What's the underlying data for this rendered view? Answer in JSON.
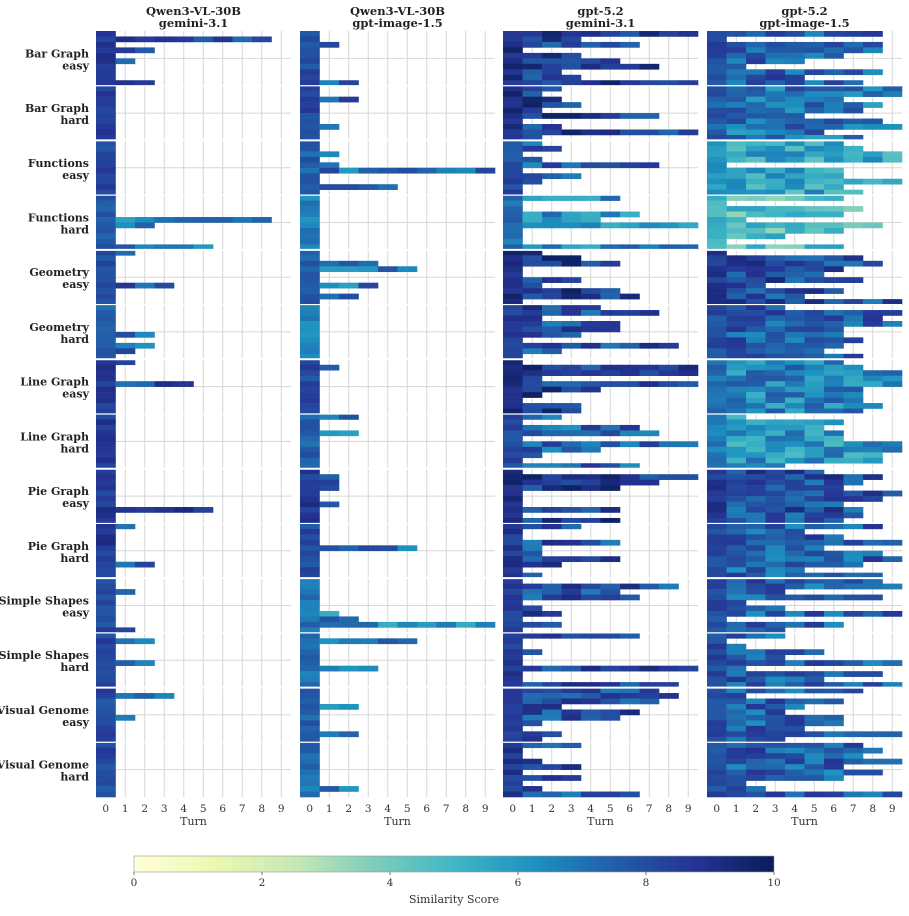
{
  "chart_data": {
    "type": "heatmap",
    "panels": [
      {
        "title_line1": "Qwen3-VL-30B",
        "title_line2": "gemini-3.1"
      },
      {
        "title_line1": "Qwen3-VL-30B",
        "title_line2": "gpt-image-1.5"
      },
      {
        "title_line1": "gpt-5.2",
        "title_line2": "gemini-3.1"
      },
      {
        "title_line1": "gpt-5.2",
        "title_line2": "gpt-image-1.5"
      }
    ],
    "row_groups": [
      {
        "line1": "Bar Graph",
        "line2": "easy"
      },
      {
        "line1": "Bar Graph",
        "line2": "hard"
      },
      {
        "line1": "Functions",
        "line2": "easy"
      },
      {
        "line1": "Functions",
        "line2": "hard"
      },
      {
        "line1": "Geometry",
        "line2": "easy"
      },
      {
        "line1": "Geometry",
        "line2": "hard"
      },
      {
        "line1": "Line Graph",
        "line2": "easy"
      },
      {
        "line1": "Line Graph",
        "line2": "hard"
      },
      {
        "line1": "Pie Graph",
        "line2": "easy"
      },
      {
        "line1": "Pie Graph",
        "line2": "hard"
      },
      {
        "line1": "Simple Shapes",
        "line2": "easy"
      },
      {
        "line1": "Simple Shapes",
        "line2": "hard"
      },
      {
        "line1": "Visual Genome",
        "line2": "easy"
      },
      {
        "line1": "Visual Genome",
        "line2": "hard"
      }
    ],
    "xlabel": "Turn",
    "x_ticks": [
      "0",
      "1",
      "2",
      "3",
      "4",
      "5",
      "6",
      "7",
      "8",
      "9"
    ],
    "colorbar": {
      "label": "Similarity Score",
      "ticks": [
        "0",
        "2",
        "4",
        "6",
        "8",
        "10"
      ],
      "range": [
        0,
        10
      ],
      "colors": [
        "#ffffd9",
        "#edf8b1",
        "#c7e9b4",
        "#7fcdbb",
        "#41b6c4",
        "#1d91c0",
        "#225ea8",
        "#253494",
        "#081d58"
      ]
    },
    "rows_per_group": 10,
    "approx_typical_score_by_panel_group": [
      [
        8,
        8,
        7.5,
        7,
        7.5,
        7,
        8,
        8,
        8,
        8,
        7.5,
        7.5,
        7.5,
        7.5
      ],
      [
        7.5,
        7.5,
        7,
        6,
        7,
        6,
        7.5,
        7,
        8,
        7.5,
        6.5,
        6.5,
        7,
        6.5
      ],
      [
        8.5,
        8.5,
        7.5,
        6.5,
        8.5,
        8,
        8.5,
        7.5,
        8.5,
        8,
        8,
        8,
        8,
        8
      ],
      [
        7.5,
        7,
        5.5,
        4.5,
        8,
        7.5,
        6.5,
        6,
        8,
        7.5,
        7.5,
        7.5,
        7.5,
        7.5
      ]
    ]
  }
}
